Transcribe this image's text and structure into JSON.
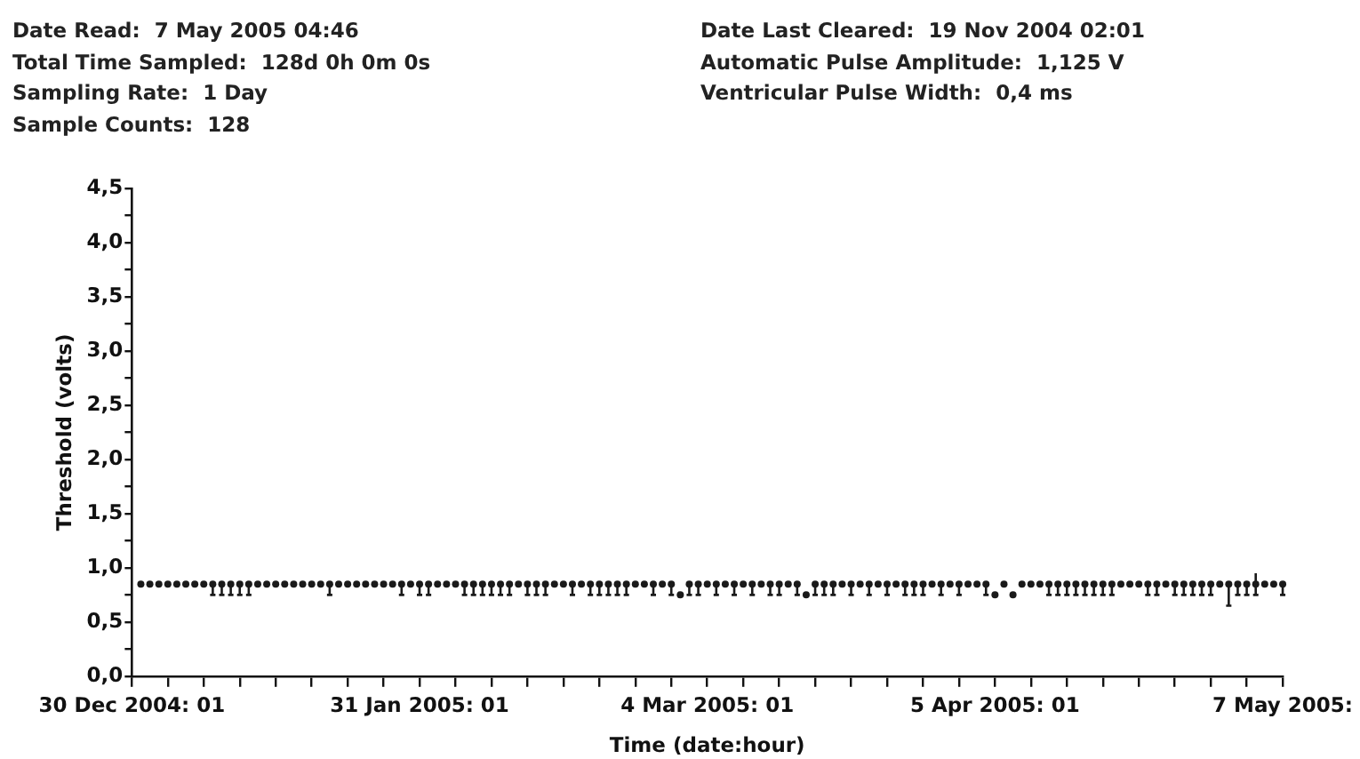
{
  "chart_data": {
    "type": "scatter",
    "annotations": [
      "Date Read:  7 May 2005 04:46",
      "Total Time Sampled:  128d 0h 0m 0s",
      "Sampling Rate:  1 Day",
      "Sample Counts:  128",
      "Date Last Cleared:  19 Nov 2004 02:01",
      "Automatic Pulse Amplitude:  1,125 V",
      "Ventricular Pulse Width:  0,4 ms"
    ],
    "xlabel": "Time (date:hour)",
    "ylabel": "Threshold (volts)",
    "x": [
      "2004-12-31T01:00",
      "2005-01-01T01:00",
      "2005-01-02T01:00",
      "2005-01-03T01:00",
      "2005-01-04T01:00",
      "2005-01-05T01:00",
      "2005-01-06T01:00",
      "2005-01-07T01:00",
      "2005-01-08T01:00",
      "2005-01-09T01:00",
      "2005-01-10T01:00",
      "2005-01-11T01:00",
      "2005-01-12T01:00",
      "2005-01-13T01:00",
      "2005-01-14T01:00",
      "2005-01-15T01:00",
      "2005-01-16T01:00",
      "2005-01-17T01:00",
      "2005-01-18T01:00",
      "2005-01-19T01:00",
      "2005-01-20T01:00",
      "2005-01-21T01:00",
      "2005-01-22T01:00",
      "2005-01-23T01:00",
      "2005-01-24T01:00",
      "2005-01-25T01:00",
      "2005-01-26T01:00",
      "2005-01-27T01:00",
      "2005-01-28T01:00",
      "2005-01-29T01:00",
      "2005-01-30T01:00",
      "2005-01-31T01:00",
      "2005-02-01T01:00",
      "2005-02-02T01:00",
      "2005-02-03T01:00",
      "2005-02-04T01:00",
      "2005-02-05T01:00",
      "2005-02-06T01:00",
      "2005-02-07T01:00",
      "2005-02-08T01:00",
      "2005-02-09T01:00",
      "2005-02-10T01:00",
      "2005-02-11T01:00",
      "2005-02-12T01:00",
      "2005-02-13T01:00",
      "2005-02-14T01:00",
      "2005-02-15T01:00",
      "2005-02-16T01:00",
      "2005-02-17T01:00",
      "2005-02-18T01:00",
      "2005-02-19T01:00",
      "2005-02-20T01:00",
      "2005-02-21T01:00",
      "2005-02-22T01:00",
      "2005-02-23T01:00",
      "2005-02-24T01:00",
      "2005-02-25T01:00",
      "2005-02-26T01:00",
      "2005-02-27T01:00",
      "2005-02-28T01:00",
      "2005-03-01T01:00",
      "2005-03-02T01:00",
      "2005-03-03T01:00",
      "2005-03-04T01:00",
      "2005-03-05T01:00",
      "2005-03-06T01:00",
      "2005-03-07T01:00",
      "2005-03-08T01:00",
      "2005-03-09T01:00",
      "2005-03-10T01:00",
      "2005-03-11T01:00",
      "2005-03-12T01:00",
      "2005-03-13T01:00",
      "2005-03-14T01:00",
      "2005-03-15T01:00",
      "2005-03-16T01:00",
      "2005-03-17T01:00",
      "2005-03-18T01:00",
      "2005-03-19T01:00",
      "2005-03-20T01:00",
      "2005-03-21T01:00",
      "2005-03-22T01:00",
      "2005-03-23T01:00",
      "2005-03-24T01:00",
      "2005-03-25T01:00",
      "2005-03-26T01:00",
      "2005-03-27T01:00",
      "2005-03-28T01:00",
      "2005-03-29T01:00",
      "2005-03-30T01:00",
      "2005-03-31T01:00",
      "2005-04-01T01:00",
      "2005-04-02T01:00",
      "2005-04-03T01:00",
      "2005-04-04T01:00",
      "2005-04-05T01:00",
      "2005-04-06T01:00",
      "2005-04-07T01:00",
      "2005-04-08T01:00",
      "2005-04-09T01:00",
      "2005-04-10T01:00",
      "2005-04-11T01:00",
      "2005-04-12T01:00",
      "2005-04-13T01:00",
      "2005-04-14T01:00",
      "2005-04-15T01:00",
      "2005-04-16T01:00",
      "2005-04-17T01:00",
      "2005-04-18T01:00",
      "2005-04-19T01:00",
      "2005-04-20T01:00",
      "2005-04-21T01:00",
      "2005-04-22T01:00",
      "2005-04-23T01:00",
      "2005-04-24T01:00",
      "2005-04-25T01:00",
      "2005-04-26T01:00",
      "2005-04-27T01:00",
      "2005-04-28T01:00",
      "2005-04-29T01:00",
      "2005-04-30T01:00",
      "2005-05-01T01:00",
      "2005-05-02T01:00",
      "2005-05-03T01:00",
      "2005-05-04T01:00",
      "2005-05-05T01:00",
      "2005-05-06T01:00",
      "2005-05-07T01:00"
    ],
    "values": [
      0.85,
      0.85,
      0.85,
      0.85,
      0.85,
      0.85,
      0.85,
      0.85,
      0.85,
      0.85,
      0.85,
      0.85,
      0.85,
      0.85,
      0.85,
      0.85,
      0.85,
      0.85,
      0.85,
      0.85,
      0.85,
      0.85,
      0.85,
      0.85,
      0.85,
      0.85,
      0.85,
      0.85,
      0.85,
      0.85,
      0.85,
      0.85,
      0.85,
      0.85,
      0.85,
      0.85,
      0.85,
      0.85,
      0.85,
      0.85,
      0.85,
      0.85,
      0.85,
      0.85,
      0.85,
      0.85,
      0.85,
      0.85,
      0.85,
      0.85,
      0.85,
      0.85,
      0.85,
      0.85,
      0.85,
      0.85,
      0.85,
      0.85,
      0.85,
      0.85,
      0.75,
      0.85,
      0.85,
      0.85,
      0.85,
      0.85,
      0.85,
      0.85,
      0.85,
      0.85,
      0.85,
      0.85,
      0.85,
      0.85,
      0.75,
      0.85,
      0.85,
      0.85,
      0.85,
      0.85,
      0.85,
      0.85,
      0.85,
      0.85,
      0.85,
      0.85,
      0.85,
      0.85,
      0.85,
      0.85,
      0.85,
      0.85,
      0.85,
      0.85,
      0.85,
      0.75,
      0.85,
      0.75,
      0.85,
      0.85,
      0.85,
      0.85,
      0.85,
      0.85,
      0.85,
      0.85,
      0.85,
      0.85,
      0.85,
      0.85,
      0.85,
      0.85,
      0.85,
      0.85,
      0.85,
      0.85,
      0.85,
      0.85,
      0.85,
      0.85,
      0.85,
      0.85,
      0.85,
      0.85,
      0.85,
      0.85,
      0.85,
      0.85
    ],
    "errors": [
      null,
      null,
      null,
      null,
      null,
      null,
      null,
      null,
      [
        0.75,
        0.85
      ],
      [
        0.75,
        0.85
      ],
      [
        0.75,
        0.85
      ],
      [
        0.75,
        0.85
      ],
      [
        0.75,
        0.85
      ],
      null,
      null,
      null,
      null,
      null,
      null,
      null,
      null,
      [
        0.75,
        0.85
      ],
      null,
      null,
      null,
      null,
      null,
      null,
      null,
      [
        0.75,
        0.85
      ],
      null,
      [
        0.75,
        0.85
      ],
      [
        0.75,
        0.85
      ],
      null,
      null,
      null,
      [
        0.75,
        0.85
      ],
      [
        0.75,
        0.85
      ],
      [
        0.75,
        0.85
      ],
      [
        0.75,
        0.85
      ],
      [
        0.75,
        0.85
      ],
      [
        0.75,
        0.85
      ],
      null,
      [
        0.75,
        0.85
      ],
      [
        0.75,
        0.85
      ],
      [
        0.75,
        0.85
      ],
      null,
      null,
      [
        0.75,
        0.85
      ],
      null,
      [
        0.75,
        0.85
      ],
      [
        0.75,
        0.85
      ],
      [
        0.75,
        0.85
      ],
      [
        0.75,
        0.85
      ],
      [
        0.75,
        0.85
      ],
      null,
      null,
      [
        0.75,
        0.85
      ],
      null,
      [
        0.75,
        0.85
      ],
      null,
      [
        0.75,
        0.85
      ],
      [
        0.75,
        0.85
      ],
      null,
      [
        0.75,
        0.85
      ],
      null,
      [
        0.75,
        0.85
      ],
      null,
      [
        0.75,
        0.85
      ],
      null,
      [
        0.75,
        0.85
      ],
      [
        0.75,
        0.85
      ],
      null,
      [
        0.75,
        0.85
      ],
      null,
      [
        0.75,
        0.85
      ],
      [
        0.75,
        0.85
      ],
      [
        0.75,
        0.85
      ],
      null,
      [
        0.75,
        0.85
      ],
      null,
      [
        0.75,
        0.85
      ],
      null,
      [
        0.75,
        0.85
      ],
      null,
      [
        0.75,
        0.85
      ],
      [
        0.75,
        0.85
      ],
      [
        0.75,
        0.85
      ],
      null,
      [
        0.75,
        0.85
      ],
      null,
      [
        0.75,
        0.85
      ],
      null,
      null,
      [
        0.75,
        0.85
      ],
      null,
      null,
      null,
      null,
      null,
      null,
      [
        0.75,
        0.85
      ],
      [
        0.75,
        0.85
      ],
      [
        0.75,
        0.85
      ],
      [
        0.75,
        0.85
      ],
      [
        0.75,
        0.85
      ],
      [
        0.75,
        0.85
      ],
      [
        0.75,
        0.85
      ],
      [
        0.75,
        0.85
      ],
      null,
      null,
      null,
      [
        0.75,
        0.85
      ],
      [
        0.75,
        0.85
      ],
      null,
      [
        0.75,
        0.85
      ],
      [
        0.75,
        0.85
      ],
      [
        0.75,
        0.85
      ],
      [
        0.75,
        0.85
      ],
      [
        0.75,
        0.85
      ],
      null,
      [
        0.65,
        0.85
      ],
      [
        0.75,
        0.85
      ],
      [
        0.75,
        0.85
      ],
      [
        0.75,
        0.95
      ],
      null,
      null,
      [
        0.75,
        0.85
      ]
    ],
    "color": "#1a1a1a",
    "xlim": [
      "2004-12-30T01:00",
      "2005-05-07T01:00"
    ],
    "xticks": [
      {
        "value": "2004-12-30T01:00",
        "label": "30 Dec 2004: 01"
      },
      {
        "value": "2005-01-03T01:00",
        "label": null
      },
      {
        "value": "2005-01-07T01:00",
        "label": null
      },
      {
        "value": "2005-01-11T01:00",
        "label": null
      },
      {
        "value": "2005-01-15T01:00",
        "label": null
      },
      {
        "value": "2005-01-19T01:00",
        "label": null
      },
      {
        "value": "2005-01-23T01:00",
        "label": null
      },
      {
        "value": "2005-01-27T01:00",
        "label": null
      },
      {
        "value": "2005-01-31T01:00",
        "label": "31 Jan 2005: 01"
      },
      {
        "value": "2005-02-04T01:00",
        "label": null
      },
      {
        "value": "2005-02-08T01:00",
        "label": null
      },
      {
        "value": "2005-02-12T01:00",
        "label": null
      },
      {
        "value": "2005-02-16T01:00",
        "label": null
      },
      {
        "value": "2005-02-20T01:00",
        "label": null
      },
      {
        "value": "2005-02-24T01:00",
        "label": null
      },
      {
        "value": "2005-02-28T01:00",
        "label": null
      },
      {
        "value": "2005-03-04T01:00",
        "label": "4 Mar 2005: 01"
      },
      {
        "value": "2005-03-08T01:00",
        "label": null
      },
      {
        "value": "2005-03-12T01:00",
        "label": null
      },
      {
        "value": "2005-03-16T01:00",
        "label": null
      },
      {
        "value": "2005-03-20T01:00",
        "label": null
      },
      {
        "value": "2005-03-24T01:00",
        "label": null
      },
      {
        "value": "2005-03-28T01:00",
        "label": null
      },
      {
        "value": "2005-04-01T01:00",
        "label": null
      },
      {
        "value": "2005-04-05T01:00",
        "label": "5 Apr 2005: 01"
      },
      {
        "value": "2005-04-09T01:00",
        "label": null
      },
      {
        "value": "2005-04-13T01:00",
        "label": null
      },
      {
        "value": "2005-04-17T01:00",
        "label": null
      },
      {
        "value": "2005-04-21T01:00",
        "label": null
      },
      {
        "value": "2005-04-25T01:00",
        "label": null
      },
      {
        "value": "2005-04-29T01:00",
        "label": null
      },
      {
        "value": "2005-05-03T01:00",
        "label": null
      },
      {
        "value": "2005-05-07T01:00",
        "label": "7 May 2005:"
      }
    ],
    "ylim": [
      0,
      4.5
    ],
    "yticks": [
      {
        "value": 0,
        "label": "0,0"
      },
      {
        "value": 0.25,
        "label": null
      },
      {
        "value": 0.5,
        "label": "0,5"
      },
      {
        "value": 0.75,
        "label": null
      },
      {
        "value": 1,
        "label": "1,0"
      },
      {
        "value": 1.25,
        "label": null
      },
      {
        "value": 1.5,
        "label": "1,5"
      },
      {
        "value": 1.75,
        "label": null
      },
      {
        "value": 2,
        "label": "2,0"
      },
      {
        "value": 2.25,
        "label": null
      },
      {
        "value": 2.5,
        "label": "2,5"
      },
      {
        "value": 2.75,
        "label": null
      },
      {
        "value": 3,
        "label": "3,0"
      },
      {
        "value": 3.25,
        "label": null
      },
      {
        "value": 3.5,
        "label": "3,5"
      },
      {
        "value": 3.75,
        "label": null
      },
      {
        "value": 4,
        "label": "4,0"
      },
      {
        "value": 4.25,
        "label": null
      },
      {
        "value": 4.5,
        "label": "4,5"
      }
    ],
    "grid": false,
    "legend": false,
    "marker": "circle"
  }
}
